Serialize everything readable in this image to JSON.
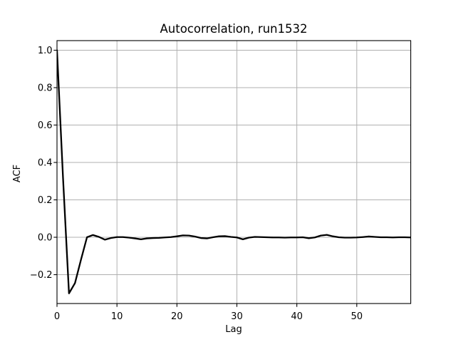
{
  "window": {
    "background": "#ffffff"
  },
  "chart_data": {
    "type": "line",
    "title": "Autocorrelation, run1532",
    "xlabel": "Lag",
    "ylabel": "ACF",
    "legend": null,
    "grid": true,
    "grid_color": "#b0b0b0",
    "line_color": "#000000",
    "line_width": 2.3,
    "xlim": [
      0,
      59
    ],
    "ylim": [
      -0.354,
      1.051
    ],
    "xticks": [
      0,
      10,
      20,
      30,
      40,
      50
    ],
    "xtick_labels": [
      "0",
      "10",
      "20",
      "30",
      "40",
      "50"
    ],
    "yticks": [
      1.0,
      0.8,
      0.6,
      0.4,
      0.2,
      0.0,
      -0.2
    ],
    "ytick_labels": [
      "1.0",
      "0.8",
      "0.6",
      "0.4",
      "0.2",
      "0.0",
      "−0.2"
    ],
    "x": [
      0,
      1,
      2,
      3,
      4,
      5,
      6,
      7,
      8,
      9,
      10,
      11,
      12,
      13,
      14,
      15,
      16,
      17,
      18,
      19,
      20,
      21,
      22,
      23,
      24,
      25,
      26,
      27,
      28,
      29,
      30,
      31,
      32,
      33,
      34,
      35,
      36,
      37,
      38,
      39,
      40,
      41,
      42,
      43,
      44,
      45,
      46,
      47,
      48,
      49,
      50,
      51,
      52,
      53,
      54,
      55,
      56,
      57,
      58,
      59
    ],
    "series": [
      {
        "name": "ACF",
        "values": [
          1.0,
          0.32,
          -0.3,
          -0.245,
          -0.12,
          0.0,
          0.012,
          0.002,
          -0.013,
          -0.004,
          0.001,
          0.001,
          -0.002,
          -0.006,
          -0.011,
          -0.006,
          -0.004,
          -0.003,
          -0.001,
          0.001,
          0.005,
          0.01,
          0.009,
          0.004,
          -0.004,
          -0.006,
          0.0,
          0.005,
          0.006,
          0.002,
          -0.001,
          -0.011,
          -0.002,
          0.002,
          0.001,
          0.0,
          -0.001,
          -0.001,
          -0.002,
          -0.001,
          -0.001,
          0.0,
          -0.005,
          -0.001,
          0.009,
          0.013,
          0.005,
          0.0,
          -0.002,
          -0.002,
          -0.001,
          0.001,
          0.004,
          0.002,
          0.0,
          0.0,
          -0.001,
          0.0,
          0.0,
          -0.001
        ]
      }
    ]
  }
}
